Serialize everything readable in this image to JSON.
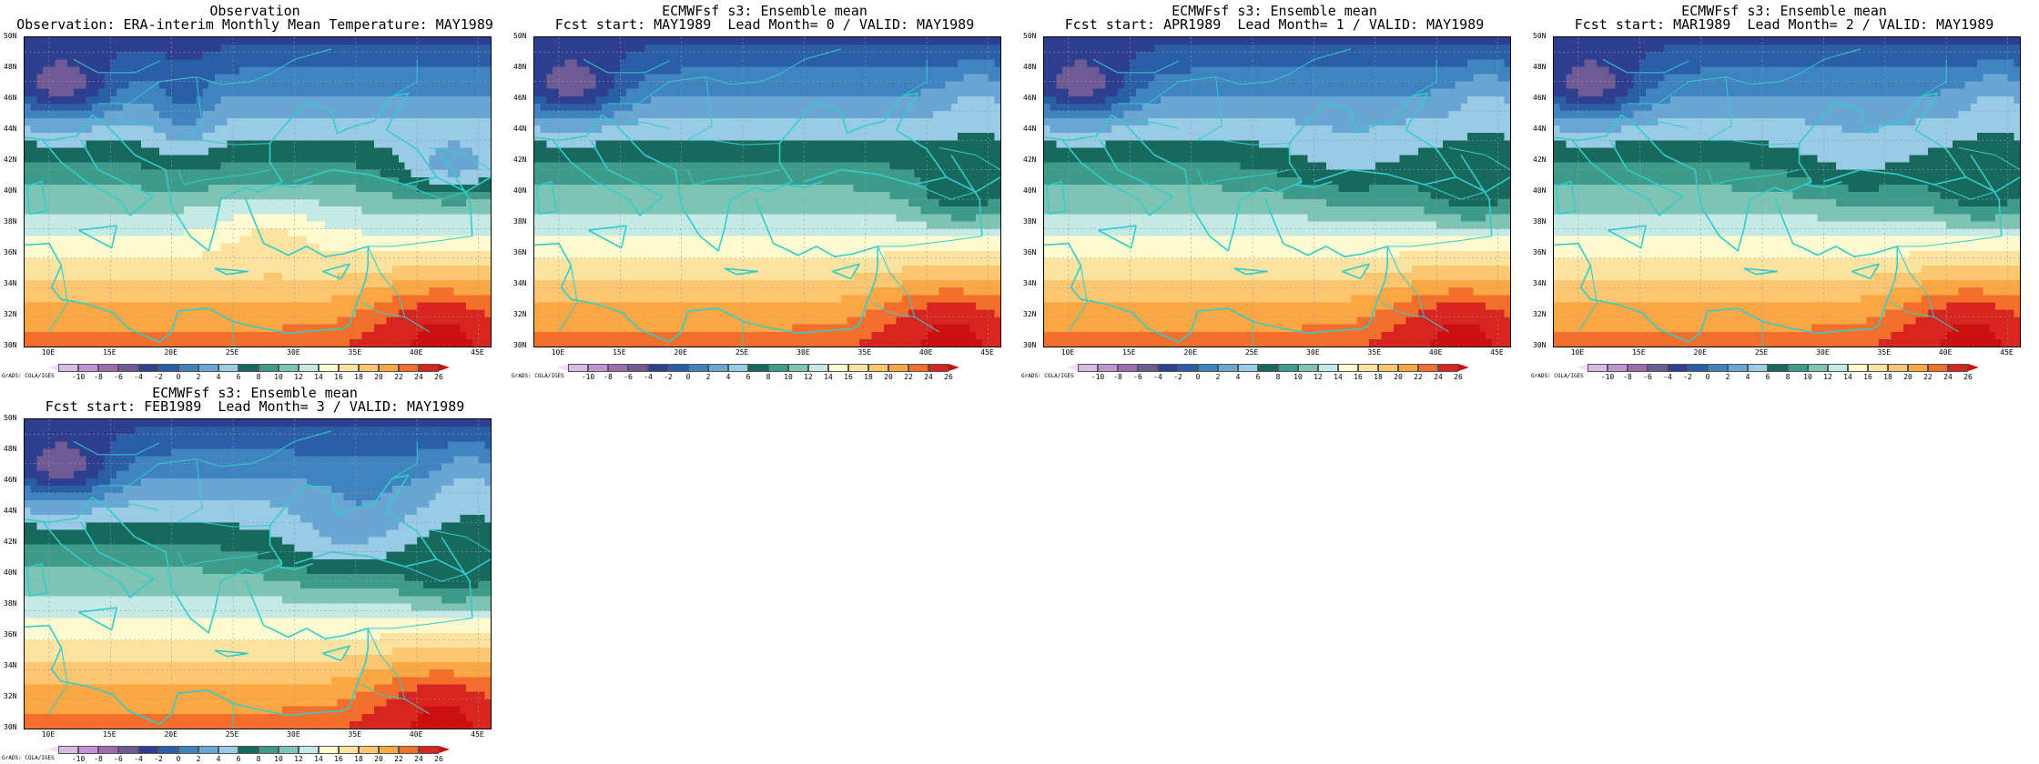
{
  "panels": [
    {
      "title_line1": "Observation",
      "title_line2": "Observation: ERA-interim Monthly Mean Temperature: MAY1989",
      "variant": 0
    },
    {
      "title_line1": "ECMWFsf s3: Ensemble mean",
      "title_line2": "Fcst start: MAY1989  Lead Month= 0 / VALID: MAY1989",
      "variant": 1
    },
    {
      "title_line1": "ECMWFsf s3: Ensemble mean",
      "title_line2": "Fcst start: APR1989  Lead Month= 1 / VALID: MAY1989",
      "variant": 2
    },
    {
      "title_line1": "ECMWFsf s3: Ensemble mean",
      "title_line2": "Fcst start: MAR1989  Lead Month= 2 / VALID: MAY1989",
      "variant": 3
    },
    {
      "title_line1": "ECMWFsf s3: Ensemble mean",
      "title_line2": "Fcst start: FEB1989  Lead Month= 3 / VALID: MAY1989",
      "variant": 4
    }
  ],
  "map": {
    "lat_labels": [
      "50N",
      "48N",
      "46N",
      "44N",
      "42N",
      "40N",
      "38N",
      "36N",
      "34N",
      "32N",
      "30N"
    ],
    "lon_labels": [
      "10E",
      "15E",
      "20E",
      "25E",
      "30E",
      "35E",
      "40E",
      "45E"
    ],
    "lat_range": [
      30,
      51
    ],
    "lon_range": [
      8,
      46
    ]
  },
  "colorbar": {
    "ticks": [
      "-10",
      "-8",
      "-6",
      "-4",
      "-2",
      "0",
      "2",
      "4",
      "6",
      "8",
      "10",
      "12",
      "14",
      "16",
      "18",
      "20",
      "22",
      "24",
      "26"
    ],
    "colors": [
      "#d7bde6",
      "#c293d6",
      "#9e6bb1",
      "#6e5a94",
      "#2e3f8f",
      "#2a5fa8",
      "#3f83c0",
      "#6aa6d3",
      "#9acbe6",
      "#17695e",
      "#3e9b8a",
      "#7ec4b4",
      "#c5e9e4",
      "#fffbd0",
      "#fde3a0",
      "#fdc671",
      "#fba744",
      "#f46e2c",
      "#d9251f"
    ],
    "low_color": "#ece0f2",
    "high_color": "#cc1010",
    "credit": "GrADS: COLA/IGES"
  },
  "palette": {
    "coast": "#33cccc",
    "grid": "#999999"
  }
}
